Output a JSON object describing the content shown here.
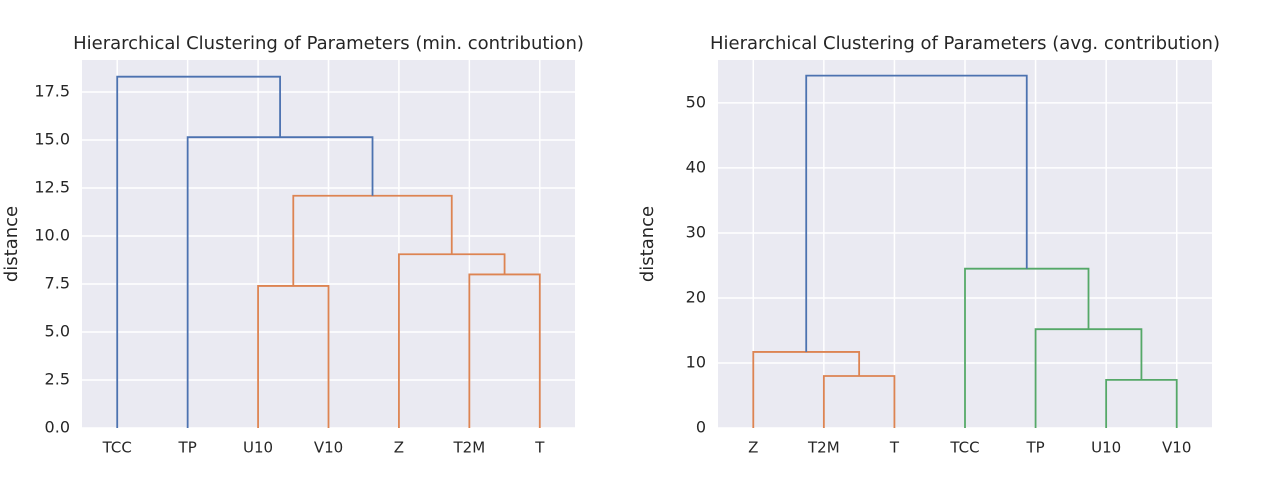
{
  "chart_data": [
    {
      "type": "dendrogram",
      "title": "Hierarchical Clustering of Parameters (min. contribution)",
      "ylabel": "distance",
      "categories": [
        "TCC",
        "TP",
        "U10",
        "V10",
        "Z",
        "T2M",
        "T"
      ],
      "links": [
        {
          "x": [
            2,
            2,
            3,
            3
          ],
          "y": [
            0,
            7.4,
            7.4,
            0
          ],
          "color": "#dd8452"
        },
        {
          "x": [
            5,
            5,
            6,
            6
          ],
          "y": [
            0,
            8.0,
            8.0,
            0
          ],
          "color": "#dd8452"
        },
        {
          "x": [
            4,
            4,
            5.5,
            5.5
          ],
          "y": [
            0,
            9.05,
            9.05,
            8.0
          ],
          "color": "#dd8452"
        },
        {
          "x": [
            2.5,
            2.5,
            4.75,
            4.75
          ],
          "y": [
            7.4,
            12.1,
            12.1,
            9.05
          ],
          "color": "#dd8452"
        },
        {
          "x": [
            1,
            1,
            3.625,
            3.625
          ],
          "y": [
            0,
            15.15,
            15.15,
            12.1
          ],
          "color": "#4c72b0"
        },
        {
          "x": [
            0,
            0,
            2.3125,
            2.3125
          ],
          "y": [
            0,
            18.3,
            18.3,
            15.15
          ],
          "color": "#4c72b0"
        }
      ],
      "ylim": [
        0,
        19.17
      ],
      "yticks": [
        {
          "value": 0,
          "label": "0.0"
        },
        {
          "value": 2.5,
          "label": "2.5"
        },
        {
          "value": 5,
          "label": "5.0"
        },
        {
          "value": 7.5,
          "label": "7.5"
        },
        {
          "value": 10,
          "label": "10.0"
        },
        {
          "value": 12.5,
          "label": "12.5"
        },
        {
          "value": 15,
          "label": "15.0"
        },
        {
          "value": 17.5,
          "label": "17.5"
        }
      ],
      "grid": true
    },
    {
      "type": "dendrogram",
      "title": "Hierarchical Clustering of Parameters (avg. contribution)",
      "ylabel": "distance",
      "categories": [
        "Z",
        "T2M",
        "T",
        "TCC",
        "TP",
        "U10",
        "V10"
      ],
      "links": [
        {
          "x": [
            1,
            1,
            2,
            2
          ],
          "y": [
            0,
            8,
            8,
            0
          ],
          "color": "#dd8452"
        },
        {
          "x": [
            0,
            0,
            1.5,
            1.5
          ],
          "y": [
            0,
            11.7,
            11.7,
            8
          ],
          "color": "#dd8452"
        },
        {
          "x": [
            5,
            5,
            6,
            6
          ],
          "y": [
            0,
            7.4,
            7.4,
            0
          ],
          "color": "#55a868"
        },
        {
          "x": [
            4,
            4,
            5.5,
            5.5
          ],
          "y": [
            0,
            15.2,
            15.2,
            7.4
          ],
          "color": "#55a868"
        },
        {
          "x": [
            3,
            3,
            4.75,
            4.75
          ],
          "y": [
            0,
            24.5,
            24.5,
            15.2
          ],
          "color": "#55a868"
        },
        {
          "x": [
            0.75,
            0.75,
            3.875,
            3.875
          ],
          "y": [
            11.7,
            54.2,
            54.2,
            24.5
          ],
          "color": "#4c72b0"
        }
      ],
      "ylim": [
        0,
        56.6
      ],
      "yticks": [
        0,
        10,
        20,
        30,
        40,
        50
      ],
      "grid": true
    }
  ]
}
